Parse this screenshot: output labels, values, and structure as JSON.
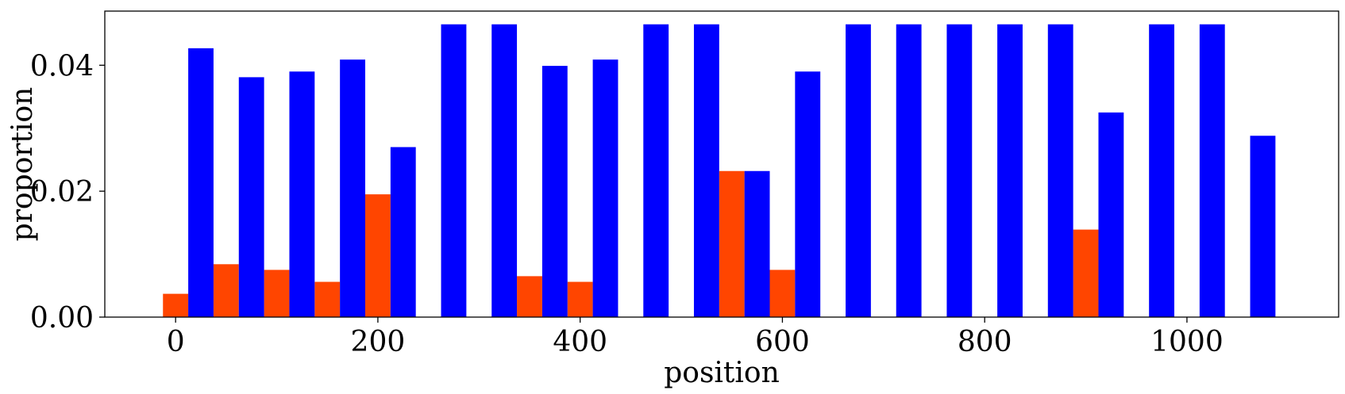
{
  "chart_data": {
    "type": "bar",
    "title": "",
    "xlabel": "position",
    "ylabel": "proportion",
    "xlim": [
      -70,
      1150
    ],
    "ylim": [
      0,
      0.0486
    ],
    "xticks": [
      0,
      200,
      400,
      600,
      800,
      1000
    ],
    "xtick_labels": [
      "0",
      "200",
      "400",
      "600",
      "800",
      "1000"
    ],
    "yticks": [
      0,
      0.02,
      0.04
    ],
    "ytick_labels": [
      "0.00",
      "0.02",
      "0.04"
    ],
    "bar_width": 25,
    "grid": false,
    "legend": null,
    "series": [
      {
        "color": "#ff4500",
        "x": [
          0,
          50,
          100,
          150,
          200,
          250,
          300,
          350,
          400,
          450,
          500,
          550,
          600,
          650,
          700,
          750,
          800,
          850,
          900,
          950,
          1000,
          1050
        ],
        "values": [
          0.0037,
          0.0084,
          0.0075,
          0.0056,
          0.0195,
          0,
          0,
          0.0065,
          0.0056,
          0,
          0,
          0.0232,
          0.0075,
          0,
          0,
          0,
          0,
          0,
          0.0139,
          0,
          0,
          0
        ]
      },
      {
        "color": "#0000ff",
        "x": [
          25,
          75,
          125,
          175,
          225,
          275,
          325,
          375,
          425,
          475,
          525,
          575,
          625,
          675,
          725,
          775,
          825,
          875,
          925,
          975,
          1025,
          1075
        ],
        "values": [
          0.0427,
          0.0381,
          0.039,
          0.0409,
          0.027,
          0.0465,
          0.0465,
          0.0399,
          0.0409,
          0.0465,
          0.0465,
          0.0232,
          0.039,
          0.0465,
          0.0465,
          0.0465,
          0.0465,
          0.0465,
          0.0325,
          0.0465,
          0.0465,
          0.0288
        ]
      }
    ]
  }
}
